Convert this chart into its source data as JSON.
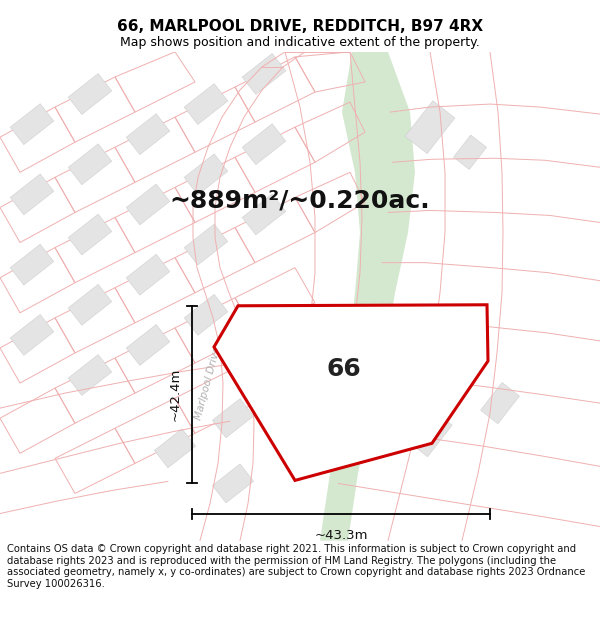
{
  "title": "66, MARLPOOL DRIVE, REDDITCH, B97 4RX",
  "subtitle": "Map shows position and indicative extent of the property.",
  "area_text": "~889m²/~0.220ac.",
  "dim_horizontal": "~43.3m",
  "dim_vertical": "~42.4m",
  "property_number": "66",
  "road_label": "Marlpool Drive",
  "footer": "Contains OS data © Crown copyright and database right 2021. This information is subject to Crown copyright and database rights 2023 and is reproduced with the permission of HM Land Registry. The polygons (including the associated geometry, namely x, y co-ordinates) are subject to Crown copyright and database rights 2023 Ordnance Survey 100026316.",
  "bg_color": "#ffffff",
  "property_fill": "#ffffff",
  "property_edge": "#cc0000",
  "street_color": "#f0b0b0",
  "outline_color": "#e8c0c0",
  "green_strip_color": "#d4e8d0",
  "grey_block_color": "#e4e4e4",
  "grey_block_edge": "#d0d0d0",
  "title_fontsize": 11,
  "subtitle_fontsize": 9,
  "footer_fontsize": 7.2,
  "area_fontsize": 18,
  "label_fontsize": 18,
  "dim_fontsize": 9.5,
  "road_label_fontsize": 7.5
}
